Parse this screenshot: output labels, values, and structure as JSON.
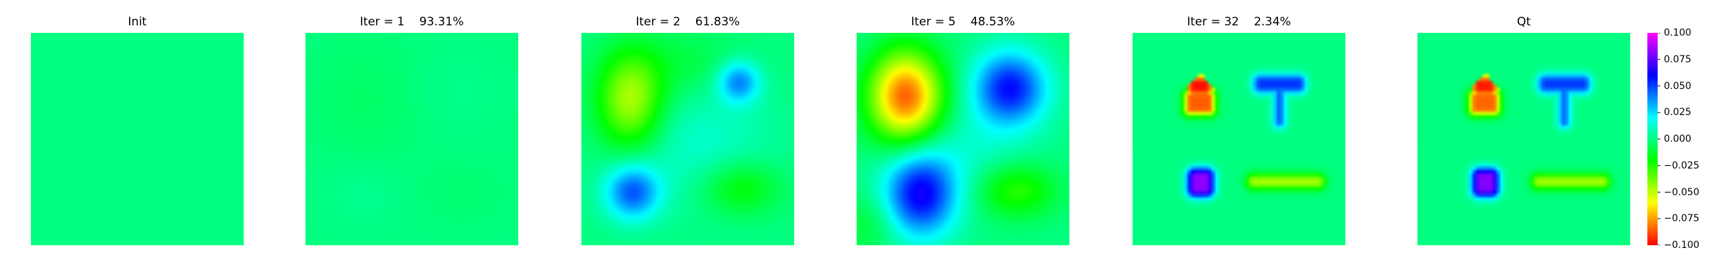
{
  "chart_data": {
    "type": "heatmap",
    "panels": [
      {
        "title": "Init"
      },
      {
        "title": "Iter = 1    93.31%"
      },
      {
        "title": "Iter = 2    61.83%"
      },
      {
        "title": "Iter = 5    48.53%"
      },
      {
        "title": "Iter = 32    2.34%"
      },
      {
        "title": "Qt"
      }
    ],
    "colorbar": {
      "vmin": -0.1,
      "vmax": 0.1,
      "ticks": [
        "0.100",
        "0.075",
        "0.050",
        "0.025",
        "0.000",
        "−0.025",
        "−0.050",
        "−0.075",
        "−0.100"
      ],
      "colormap": "gist_rainbow"
    },
    "grid": false
  }
}
